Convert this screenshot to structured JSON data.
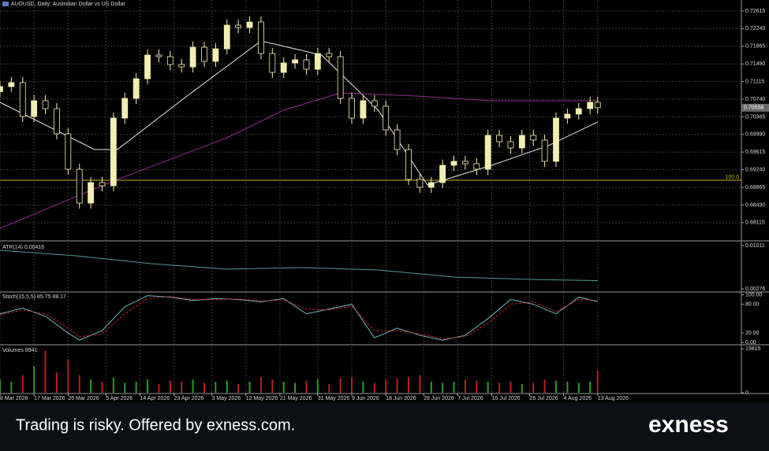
{
  "chart_data": {
    "type": "candlestick",
    "title": "AUDUSD, Daily: Australian Dollar vs US Dollar",
    "x": [
      0,
      3,
      6,
      9,
      12,
      15,
      18,
      21,
      24,
      27,
      30,
      33,
      36,
      39,
      42,
      45,
      48,
      51,
      54,
      57,
      60,
      63,
      66,
      69,
      72,
      75,
      78,
      81,
      84,
      87,
      90,
      93,
      96,
      99,
      102,
      105,
      108,
      111,
      114,
      117,
      120,
      123,
      126,
      129,
      132,
      135,
      138,
      141,
      144,
      147,
      150,
      153,
      156,
      158
    ],
    "open": [
      0.709,
      0.71008,
      0.71092,
      0.70372,
      0.70707,
      0.70539,
      0.70004,
      0.6925,
      0.68531,
      0.68966,
      0.68899,
      0.70338,
      0.70757,
      0.71175,
      0.71678,
      0.71644,
      0.71477,
      0.71426,
      0.71845,
      0.71544,
      0.71811,
      0.72314,
      0.72263,
      0.72381,
      0.71711,
      0.71309,
      0.7151,
      0.71577,
      0.71376,
      0.71711,
      0.71644,
      0.70757,
      0.70338,
      0.70707,
      0.7059,
      0.70087,
      0.69669,
      0.69033,
      0.68865,
      0.68966,
      0.69334,
      0.69418,
      0.69368,
      0.6925,
      0.6997,
      0.69836,
      0.69702,
      0.6997,
      0.6987,
      0.69418,
      0.70338,
      0.70422,
      0.70539,
      0.70673
    ],
    "high": [
      0.71128,
      0.71212,
      0.71212,
      0.70827,
      0.70827,
      0.70659,
      0.70124,
      0.6937,
      0.69086,
      0.69086,
      0.70458,
      0.70877,
      0.71295,
      0.71798,
      0.71798,
      0.71764,
      0.71597,
      0.71965,
      0.71965,
      0.71931,
      0.72434,
      0.72434,
      0.72501,
      0.72501,
      0.71831,
      0.7163,
      0.71697,
      0.71697,
      0.71831,
      0.71831,
      0.71764,
      0.70877,
      0.70827,
      0.70827,
      0.7071,
      0.70207,
      0.69789,
      0.69153,
      0.69086,
      0.69454,
      0.69538,
      0.69538,
      0.69488,
      0.7009,
      0.7009,
      0.69956,
      0.7009,
      0.7009,
      0.6999,
      0.70458,
      0.70542,
      0.70659,
      0.70793,
      0.70793
    ],
    "low": [
      0.7078,
      0.70888,
      0.70252,
      0.70252,
      0.70419,
      0.69884,
      0.6913,
      0.68411,
      0.68411,
      0.68779,
      0.68779,
      0.70218,
      0.70637,
      0.71055,
      0.71524,
      0.71357,
      0.71306,
      0.71306,
      0.71424,
      0.71424,
      0.71691,
      0.72143,
      0.72143,
      0.71591,
      0.71189,
      0.71189,
      0.7139,
      0.71256,
      0.71256,
      0.71524,
      0.70637,
      0.70218,
      0.70218,
      0.7047,
      0.69967,
      0.69549,
      0.68913,
      0.68745,
      0.68745,
      0.68846,
      0.69214,
      0.69248,
      0.6913,
      0.6913,
      0.69716,
      0.69582,
      0.69582,
      0.6975,
      0.69298,
      0.69298,
      0.70218,
      0.70302,
      0.70419,
      0.70438
    ],
    "close": [
      0.71008,
      0.71092,
      0.70372,
      0.70707,
      0.70539,
      0.70004,
      0.6925,
      0.68531,
      0.68966,
      0.68899,
      0.70338,
      0.70757,
      0.71175,
      0.71678,
      0.71644,
      0.71477,
      0.71426,
      0.71845,
      0.71544,
      0.71811,
      0.72314,
      0.72263,
      0.72381,
      0.71711,
      0.71309,
      0.7151,
      0.71577,
      0.71376,
      0.71711,
      0.71644,
      0.70757,
      0.70338,
      0.70707,
      0.7059,
      0.70087,
      0.69669,
      0.69033,
      0.68865,
      0.68966,
      0.69334,
      0.69418,
      0.69368,
      0.6925,
      0.6997,
      0.69836,
      0.69702,
      0.6997,
      0.6987,
      0.69418,
      0.70338,
      0.70422,
      0.70539,
      0.70673,
      0.70558
    ],
    "up_color": "#f3eeb0",
    "down_color": "#000000",
    "outline_color": "#f3eeb0",
    "overlays": [
      {
        "color": "#e6e6e6",
        "x": [
          0,
          25,
          31,
          50,
          69,
          85,
          100,
          113,
          130,
          145,
          158
        ],
        "values": [
          0.70673,
          0.69669,
          0.69669,
          0.7084,
          0.71979,
          0.71678,
          0.70506,
          0.68915,
          0.69334,
          0.69753,
          0.70255
        ]
      },
      {
        "color": "#9a2a8e",
        "x": [
          0,
          30,
          60,
          75,
          90,
          110,
          130,
          158
        ],
        "values": [
          0.67995,
          0.69,
          0.6992,
          0.70506,
          0.70874,
          0.70807,
          0.70707,
          0.70707
        ]
      }
    ],
    "level_line": {
      "value": 0.69016,
      "label": "100.0",
      "color": "#c8b400"
    },
    "xlim": [
      0,
      196
    ],
    "xticks": [
      {
        "value": 0,
        "label": "8 Mar 2026"
      },
      {
        "value": 9,
        "label": "17 Mar 2026"
      },
      {
        "value": 18,
        "label": "26 Mar 2026"
      },
      {
        "value": 28,
        "label": "5 Apr 2026"
      },
      {
        "value": 37,
        "label": "14 Apr 2026"
      },
      {
        "value": 46,
        "label": "23 Apr 2026"
      },
      {
        "value": 56,
        "label": "3 May 2026"
      },
      {
        "value": 65,
        "label": "12 May 2026"
      },
      {
        "value": 74,
        "label": "21 May 2026"
      },
      {
        "value": 84,
        "label": "31 May 2026"
      },
      {
        "value": 93,
        "label": "9 Jun 2026"
      },
      {
        "value": 102,
        "label": "18 Jun 2026"
      },
      {
        "value": 112,
        "label": "28 Jun 2026"
      },
      {
        "value": 121,
        "label": "7 Jul 2026"
      },
      {
        "value": 130,
        "label": "16 Jul 2026"
      },
      {
        "value": 140,
        "label": "26 Jul 2026"
      },
      {
        "value": 149,
        "label": "4 Aug 2026"
      },
      {
        "value": 158,
        "label": "13 Aug 2026"
      }
    ],
    "ylim": [
      0.67744,
      0.72849
    ],
    "yticks": [
      0.72615,
      {
        "value": 0.7224,
        "label": "0.72240"
      },
      0.71865,
      {
        "value": 0.7149,
        "label": "0.71490"
      },
      0.71115,
      {
        "value": 0.7074,
        "label": "0.70740"
      },
      0.70365,
      {
        "value": 0.6999,
        "label": "0.69990"
      },
      0.69615,
      {
        "value": 0.6924,
        "label": "0.69240"
      },
      0.68865,
      {
        "value": 0.6849,
        "label": "0.68490"
      },
      0.68115
    ],
    "grid": true,
    "atr": {
      "label": "ATR(14) 0.00416",
      "color": "#4f9a94",
      "x": [
        0,
        20,
        40,
        60,
        80,
        100,
        120,
        140,
        158
      ],
      "values": [
        0.00931,
        0.00837,
        0.00704,
        0.0061,
        0.00637,
        0.00597,
        0.00477,
        0.00437,
        0.00416
      ],
      "ylim": [
        0.00236,
        0.01064
      ],
      "yticks": [
        0.01011,
        0.00276
      ]
    },
    "stoch": {
      "label": "Stoch(15,5,5) 85.75 88.17",
      "x": [
        0,
        6,
        12,
        18,
        21,
        27,
        33,
        39,
        45,
        51,
        57,
        63,
        69,
        75,
        81,
        87,
        93,
        99,
        105,
        111,
        117,
        123,
        129,
        135,
        141,
        147,
        153,
        158
      ],
      "main": {
        "color": "#6fb7c0",
        "values": [
          60,
          72,
          55,
          20,
          5,
          25,
          75,
          98,
          95,
          88,
          92,
          90,
          85,
          92,
          60,
          70,
          80,
          10,
          30,
          15,
          5,
          15,
          50,
          90,
          80,
          60,
          95,
          85.75
        ]
      },
      "signal": {
        "color": "#d02020",
        "values": [
          58,
          68,
          60,
          30,
          12,
          18,
          60,
          92,
          96,
          90,
          90,
          91,
          87,
          89,
          70,
          68,
          76,
          25,
          25,
          18,
          8,
          12,
          40,
          80,
          85,
          65,
          90,
          88.17
        ]
      },
      "ylim": [
        -3,
        104
      ],
      "yticks": [
        {
          "value": 100,
          "label": "100.00"
        },
        {
          "value": 80,
          "label": "80.00"
        },
        {
          "value": 20,
          "label": "20.00"
        },
        {
          "value": 0,
          "label": "0.00"
        }
      ]
    },
    "volumes": {
      "label": "Volumes 9941",
      "up_color": "#2e9a2e",
      "down_color": "#b82020",
      "values": [
        6000,
        5000,
        8000,
        12000,
        19000,
        9000,
        15000,
        8000,
        6000,
        5000,
        7000,
        4500,
        5000,
        6000,
        4000,
        5500,
        5000,
        6000,
        4500,
        5000,
        5500,
        4000,
        5000,
        7000,
        6000,
        5000,
        4500,
        5500,
        6000,
        4000,
        6500,
        7000,
        5000,
        4500,
        6000,
        6500,
        7000,
        8000,
        5000,
        4500,
        5000,
        6000,
        5500,
        5000,
        4500,
        5000,
        4000,
        4500,
        6000,
        5500,
        5000,
        4500,
        5000,
        9941
      ],
      "ylim": [
        0,
        21000
      ],
      "yticks": [
        19815,
        0
      ]
    }
  },
  "footer": {
    "disclaimer": "Trading is risky. Offered by exness.com.",
    "brand": "exness"
  }
}
